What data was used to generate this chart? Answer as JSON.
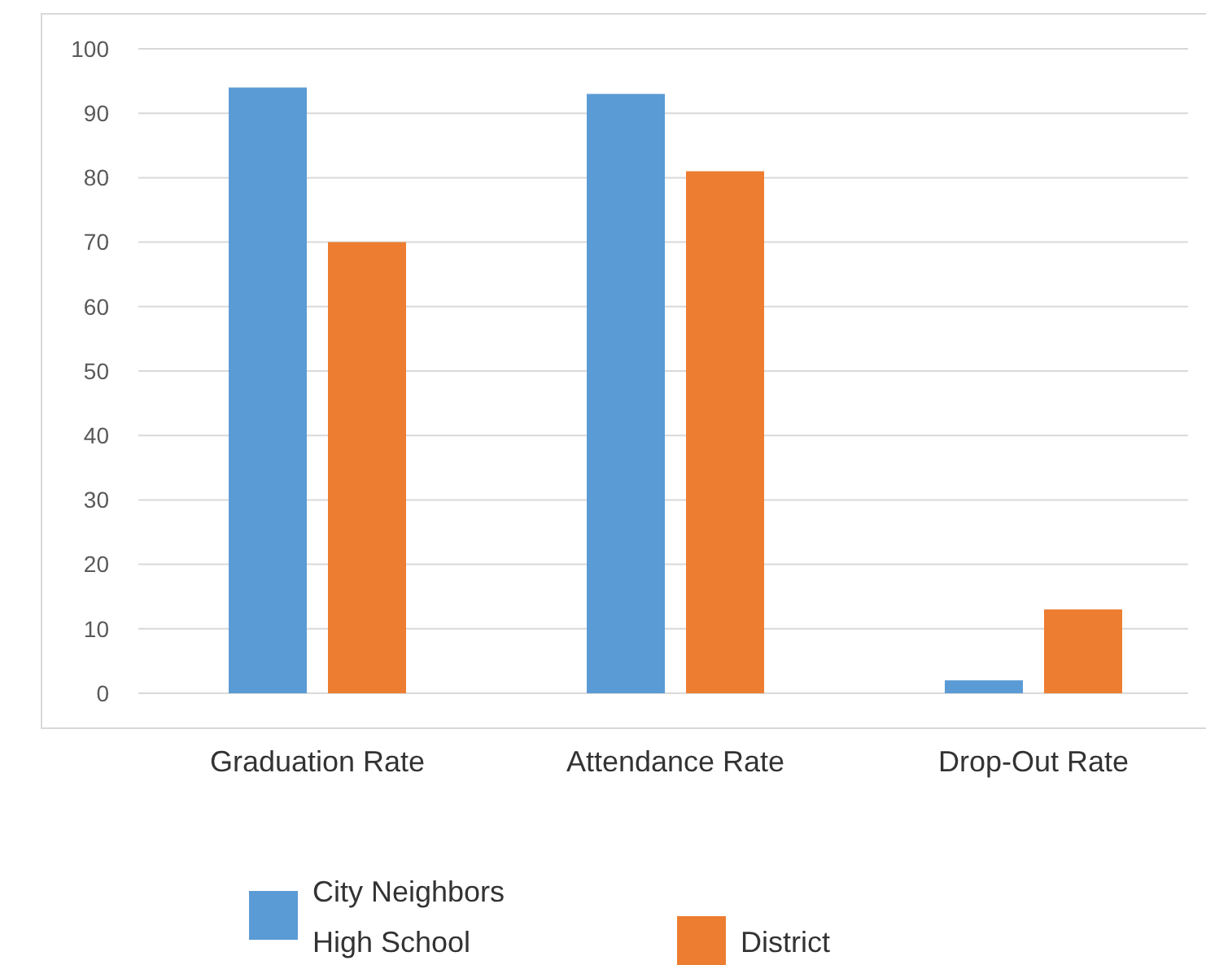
{
  "chart_data": {
    "type": "bar",
    "categories": [
      "Graduation Rate",
      "Attendance Rate",
      "Drop-Out Rate"
    ],
    "series": [
      {
        "name": "City Neighbors High School",
        "color": "#5b9bd5",
        "values": [
          94,
          93,
          2
        ]
      },
      {
        "name": "District",
        "color": "#ed7d31",
        "values": [
          70,
          81,
          13
        ]
      }
    ],
    "ylim": [
      0,
      100
    ],
    "yticks": [
      0,
      10,
      20,
      30,
      40,
      50,
      60,
      70,
      80,
      90,
      100
    ],
    "grid": "y",
    "legend": "bottom"
  }
}
